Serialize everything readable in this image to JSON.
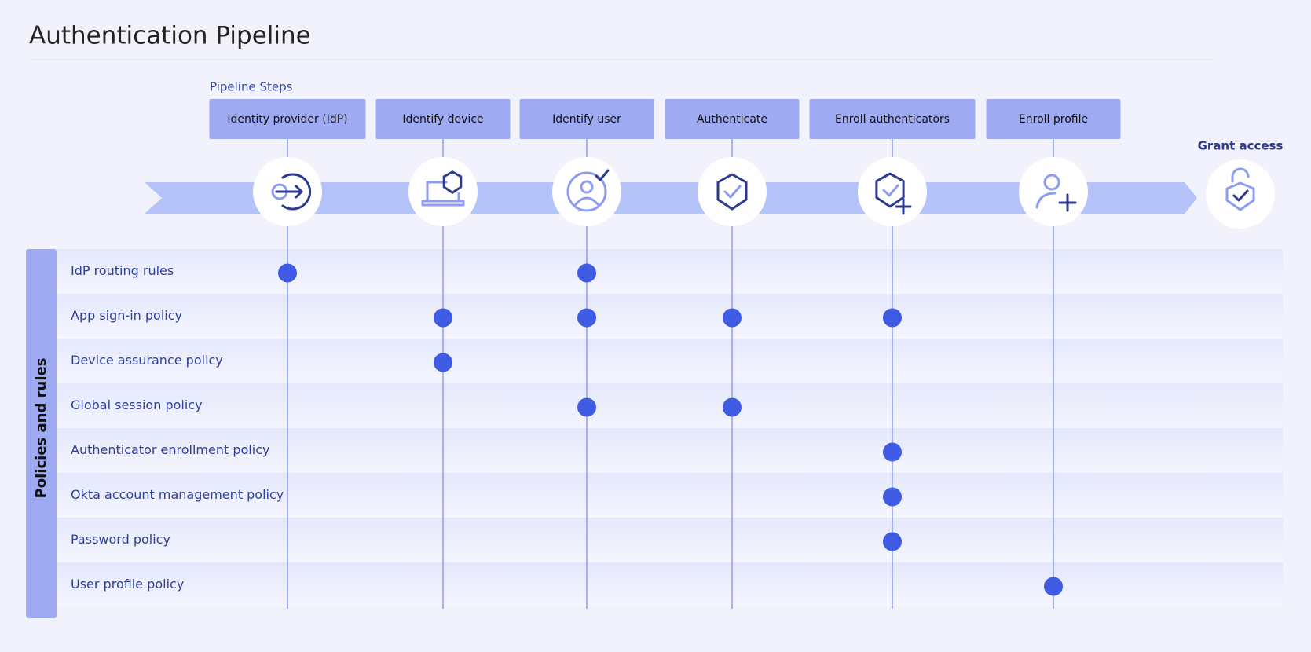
{
  "header": {
    "title": "Authentication Pipeline"
  },
  "pipeline": {
    "label": "Pipeline Steps",
    "steps": [
      "Identity provider (IdP)",
      "Identify device",
      "Identify user",
      "Authenticate",
      "Enroll authenticators",
      "Enroll profile"
    ],
    "final_step": "Grant access"
  },
  "policies": {
    "label": "Policies and rules",
    "rows": [
      {
        "label": "IdP routing rules",
        "steps": [
          0,
          2
        ]
      },
      {
        "label": "App sign-in policy",
        "steps": [
          1,
          2,
          3,
          4
        ]
      },
      {
        "label": "Device assurance policy",
        "steps": [
          1
        ]
      },
      {
        "label": "Global session policy",
        "steps": [
          2,
          3
        ]
      },
      {
        "label": "Authenticator enrollment policy",
        "steps": [
          4
        ]
      },
      {
        "label": "Okta account management policy",
        "steps": [
          4
        ]
      },
      {
        "label": "Password policy",
        "steps": [
          4
        ]
      },
      {
        "label": "User profile policy",
        "steps": [
          5
        ]
      }
    ]
  }
}
